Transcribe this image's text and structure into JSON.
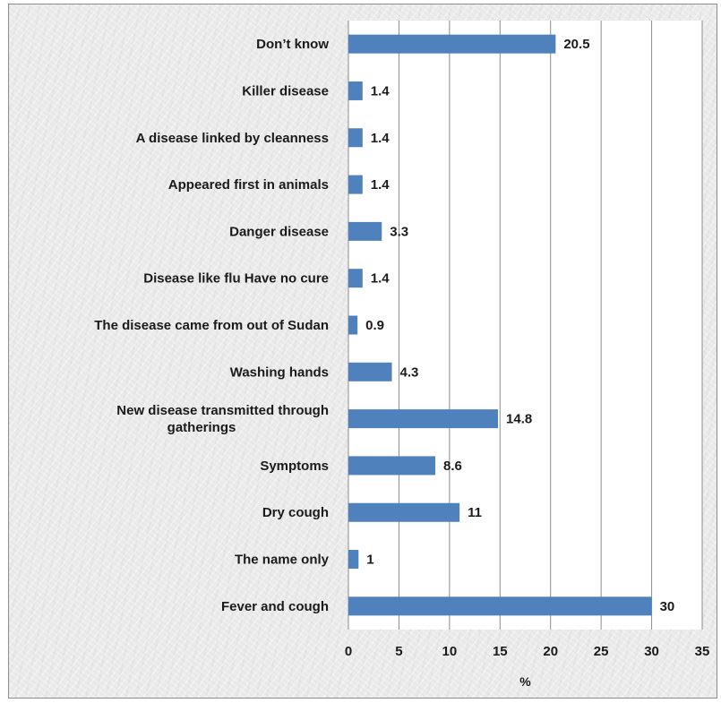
{
  "chart_data": {
    "type": "bar",
    "orientation": "horizontal",
    "categories": [
      "Don’t know",
      "Killer disease",
      "A disease linked by cleanness",
      "Appeared first in animals",
      "Danger disease",
      "Disease like flu Have no cure",
      "The disease came from out of Sudan",
      "Washing hands",
      "New disease transmitted through gatherings",
      "Symptoms",
      "Dry cough",
      "The name only",
      "Fever and cough"
    ],
    "category_lines": [
      [
        "Don’t know"
      ],
      [
        "Killer disease"
      ],
      [
        "A disease linked by cleanness"
      ],
      [
        "Appeared first in animals"
      ],
      [
        "Danger disease"
      ],
      [
        "Disease like flu Have no cure"
      ],
      [
        "The disease came from out of Sudan"
      ],
      [
        "Washing hands"
      ],
      [
        "New disease transmitted through",
        "gatherings"
      ],
      [
        "Symptoms"
      ],
      [
        "Dry cough"
      ],
      [
        "The name only"
      ],
      [
        "Fever and cough"
      ]
    ],
    "values": [
      20.5,
      1.4,
      1.4,
      1.4,
      3.3,
      1.4,
      0.9,
      4.3,
      14.8,
      8.6,
      11,
      1,
      30
    ],
    "value_labels": [
      "20.5",
      "1.4",
      "1.4",
      "1.4",
      "3.3",
      "1.4",
      "0.9",
      "4.3",
      "14.8",
      "8.6",
      "11",
      "1",
      "30"
    ],
    "xlabel": "%",
    "ylabel": "",
    "xlim": [
      0,
      35
    ],
    "ticks": [
      "0",
      "5",
      "10",
      "15",
      "20",
      "25",
      "30",
      "35"
    ],
    "grid": "vertical",
    "bar_color": "#4f81bd",
    "plot_background": "#ffffff",
    "gridline_color": "#8c8c8c",
    "legend": "none"
  }
}
